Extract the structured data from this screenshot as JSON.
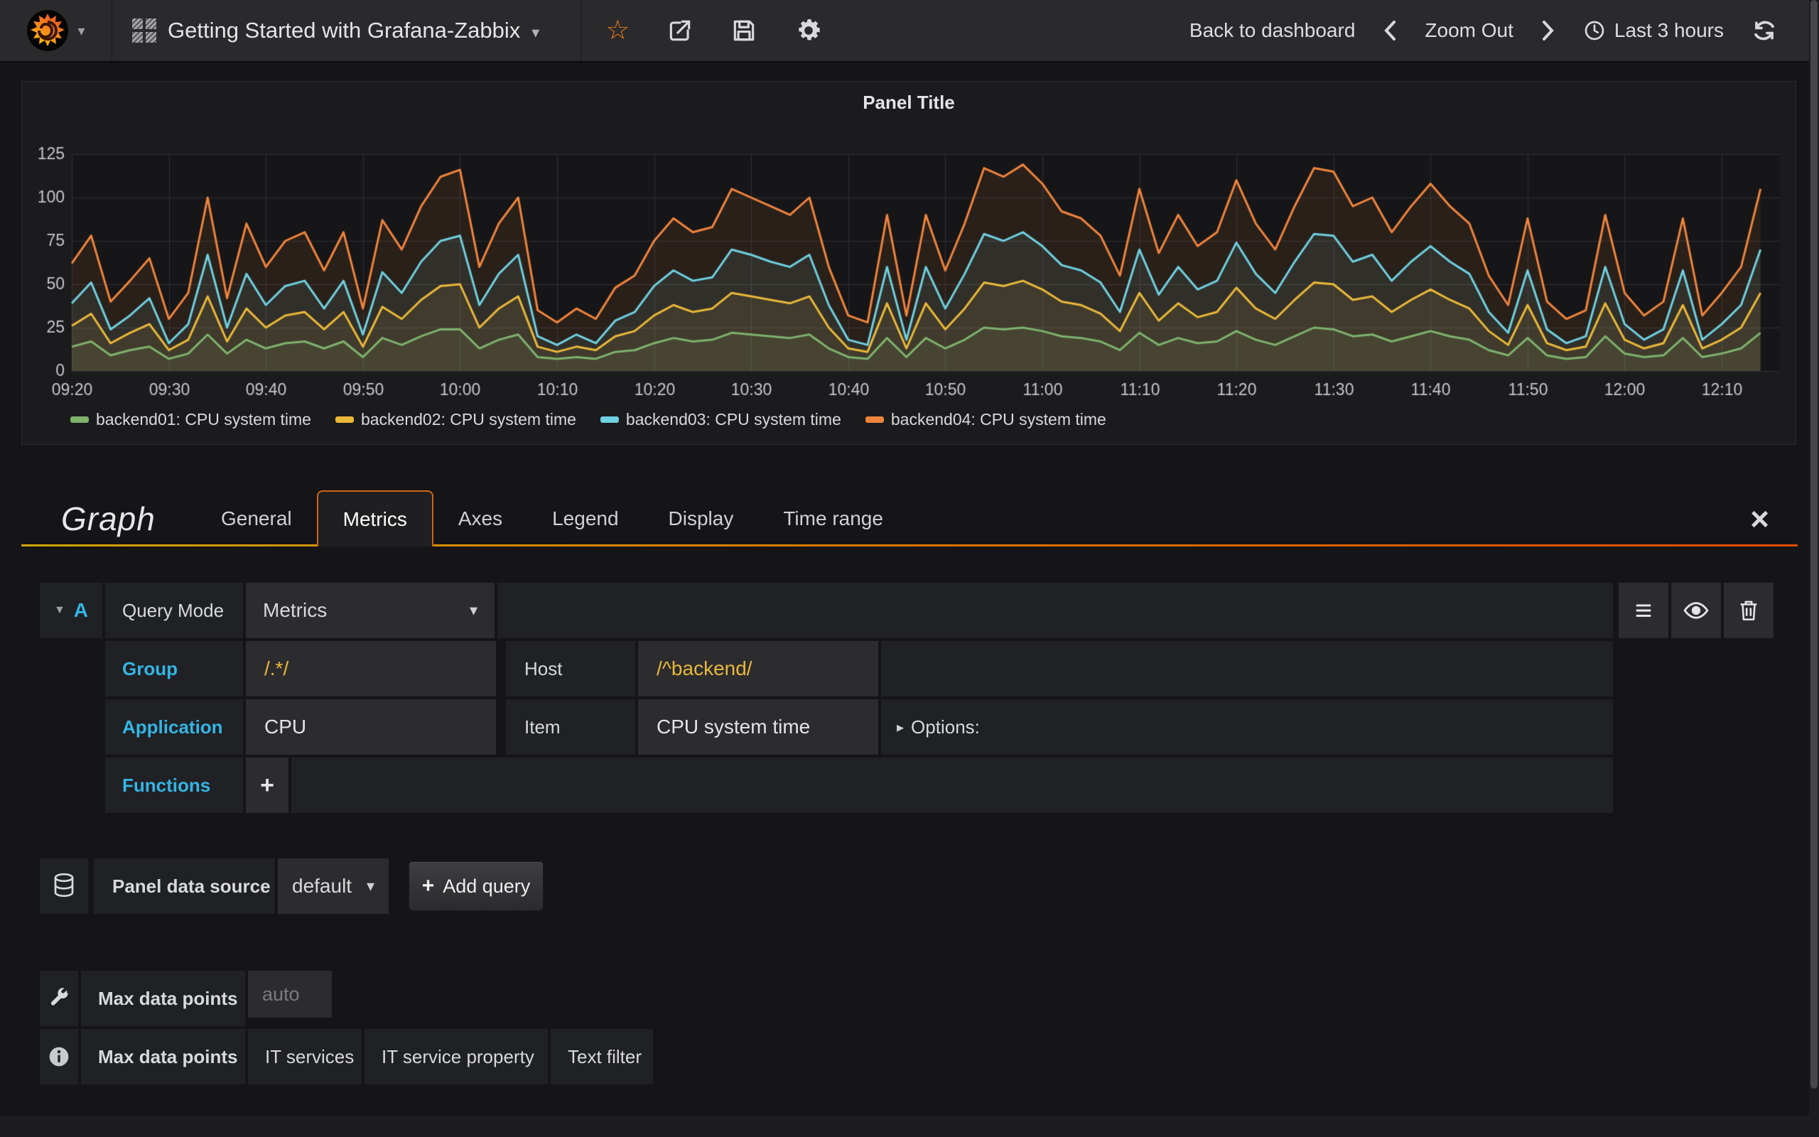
{
  "navbar": {
    "title": "Getting Started with Grafana-Zabbix",
    "back_label": "Back to dashboard",
    "zoom_out_label": "Zoom Out",
    "time_range_label": "Last 3 hours"
  },
  "panel": {
    "title": "Panel Title"
  },
  "chart_data": {
    "type": "line",
    "title": "Panel Title",
    "x_start": "09:20",
    "x_step_minutes": 2,
    "x_range_minutes": 176,
    "x_ticks": [
      "09:20",
      "09:30",
      "09:40",
      "09:50",
      "10:00",
      "10:10",
      "10:20",
      "10:30",
      "10:40",
      "10:50",
      "11:00",
      "11:10",
      "11:20",
      "11:30",
      "11:40",
      "11:50",
      "12:00",
      "12:10"
    ],
    "ylim": [
      0,
      125
    ],
    "y_ticks": [
      0,
      25,
      50,
      75,
      100,
      125
    ],
    "grid": true,
    "legend_position": "bottom",
    "series": [
      {
        "name": "backend01: CPU system time",
        "color": "#7EB26D",
        "values": [
          14,
          17,
          9,
          12,
          14,
          7,
          10,
          21,
          10,
          18,
          13,
          16,
          17,
          13,
          17,
          8,
          19,
          15,
          20,
          24,
          24,
          13,
          18,
          21,
          8,
          7,
          8,
          7,
          11,
          12,
          16,
          19,
          17,
          18,
          22,
          21,
          20,
          19,
          21,
          13,
          8,
          7,
          19,
          8,
          19,
          13,
          18,
          25,
          24,
          25,
          23,
          20,
          19,
          17,
          12,
          22,
          15,
          19,
          16,
          17,
          23,
          18,
          15,
          20,
          25,
          24,
          20,
          21,
          17,
          20,
          23,
          20,
          18,
          12,
          9,
          19,
          9,
          7,
          8,
          20,
          10,
          8,
          9,
          19,
          8,
          10,
          13,
          22
        ]
      },
      {
        "name": "backend02: CPU system time",
        "color": "#EAB839",
        "values": [
          26,
          33,
          16,
          22,
          27,
          12,
          18,
          43,
          17,
          36,
          25,
          32,
          34,
          24,
          34,
          14,
          37,
          30,
          41,
          49,
          50,
          25,
          36,
          43,
          14,
          11,
          14,
          12,
          20,
          23,
          32,
          38,
          34,
          36,
          45,
          43,
          41,
          39,
          43,
          25,
          13,
          11,
          39,
          13,
          39,
          24,
          36,
          51,
          49,
          52,
          47,
          40,
          38,
          33,
          23,
          45,
          29,
          39,
          31,
          34,
          48,
          36,
          30,
          41,
          51,
          50,
          41,
          43,
          34,
          41,
          47,
          41,
          36,
          23,
          15,
          38,
          16,
          12,
          14,
          39,
          18,
          13,
          16,
          38,
          13,
          18,
          25,
          45
        ]
      },
      {
        "name": "backend03: CPU system time",
        "color": "#6ED0E0",
        "values": [
          39,
          51,
          24,
          32,
          42,
          16,
          27,
          67,
          25,
          56,
          38,
          49,
          52,
          36,
          52,
          21,
          57,
          45,
          63,
          75,
          78,
          38,
          56,
          67,
          20,
          15,
          21,
          16,
          29,
          34,
          49,
          58,
          52,
          54,
          70,
          67,
          63,
          60,
          67,
          38,
          18,
          15,
          60,
          18,
          60,
          36,
          56,
          79,
          75,
          80,
          72,
          61,
          58,
          51,
          34,
          70,
          44,
          60,
          47,
          52,
          74,
          56,
          45,
          63,
          79,
          78,
          63,
          67,
          52,
          63,
          72,
          63,
          56,
          34,
          22,
          58,
          24,
          16,
          20,
          60,
          27,
          18,
          24,
          58,
          18,
          27,
          38,
          70
        ]
      },
      {
        "name": "backend04: CPU system time",
        "color": "#EF843C",
        "values": [
          62,
          78,
          40,
          52,
          65,
          30,
          45,
          100,
          42,
          85,
          60,
          75,
          80,
          58,
          80,
          36,
          87,
          70,
          95,
          112,
          116,
          60,
          85,
          100,
          35,
          28,
          36,
          30,
          48,
          55,
          75,
          88,
          80,
          83,
          105,
          100,
          95,
          90,
          100,
          60,
          32,
          28,
          90,
          32,
          90,
          58,
          85,
          117,
          112,
          119,
          108,
          92,
          88,
          78,
          55,
          105,
          68,
          90,
          72,
          80,
          110,
          85,
          70,
          95,
          117,
          115,
          95,
          100,
          80,
          95,
          108,
          95,
          85,
          55,
          38,
          88,
          40,
          30,
          35,
          90,
          45,
          32,
          40,
          88,
          32,
          45,
          60,
          105
        ]
      }
    ]
  },
  "editor": {
    "panel_type": "Graph",
    "tabs": [
      {
        "label": "General"
      },
      {
        "label": "Metrics"
      },
      {
        "label": "Axes"
      },
      {
        "label": "Legend"
      },
      {
        "label": "Display"
      },
      {
        "label": "Time range"
      }
    ],
    "query": {
      "letter": "A",
      "mode_label": "Query Mode",
      "mode_value": "Metrics",
      "rows": [
        {
          "label": "Group",
          "value": "/.*/"
        },
        {
          "label": "Host",
          "value": "/^backend/"
        },
        {
          "label": "Application",
          "value": "CPU"
        },
        {
          "label": "Item",
          "value": "CPU system time"
        }
      ],
      "options_label": "Options:",
      "functions_label": "Functions"
    },
    "datasource": {
      "label": "Panel data source",
      "value": "default",
      "add_query_label": "Add query"
    },
    "max_data_points": {
      "label": "Max data points",
      "placeholder": "auto"
    },
    "bottom_tabs": [
      "Max data points",
      "IT services",
      "IT service property",
      "Text filter"
    ]
  },
  "colors": {
    "accent_blue": "#33b5e5",
    "accent_yellow": "#eab839",
    "tab_active_border": "#cf6512",
    "underline_gradient_start": "#d3a40a",
    "underline_gradient_end": "#e04b00"
  }
}
